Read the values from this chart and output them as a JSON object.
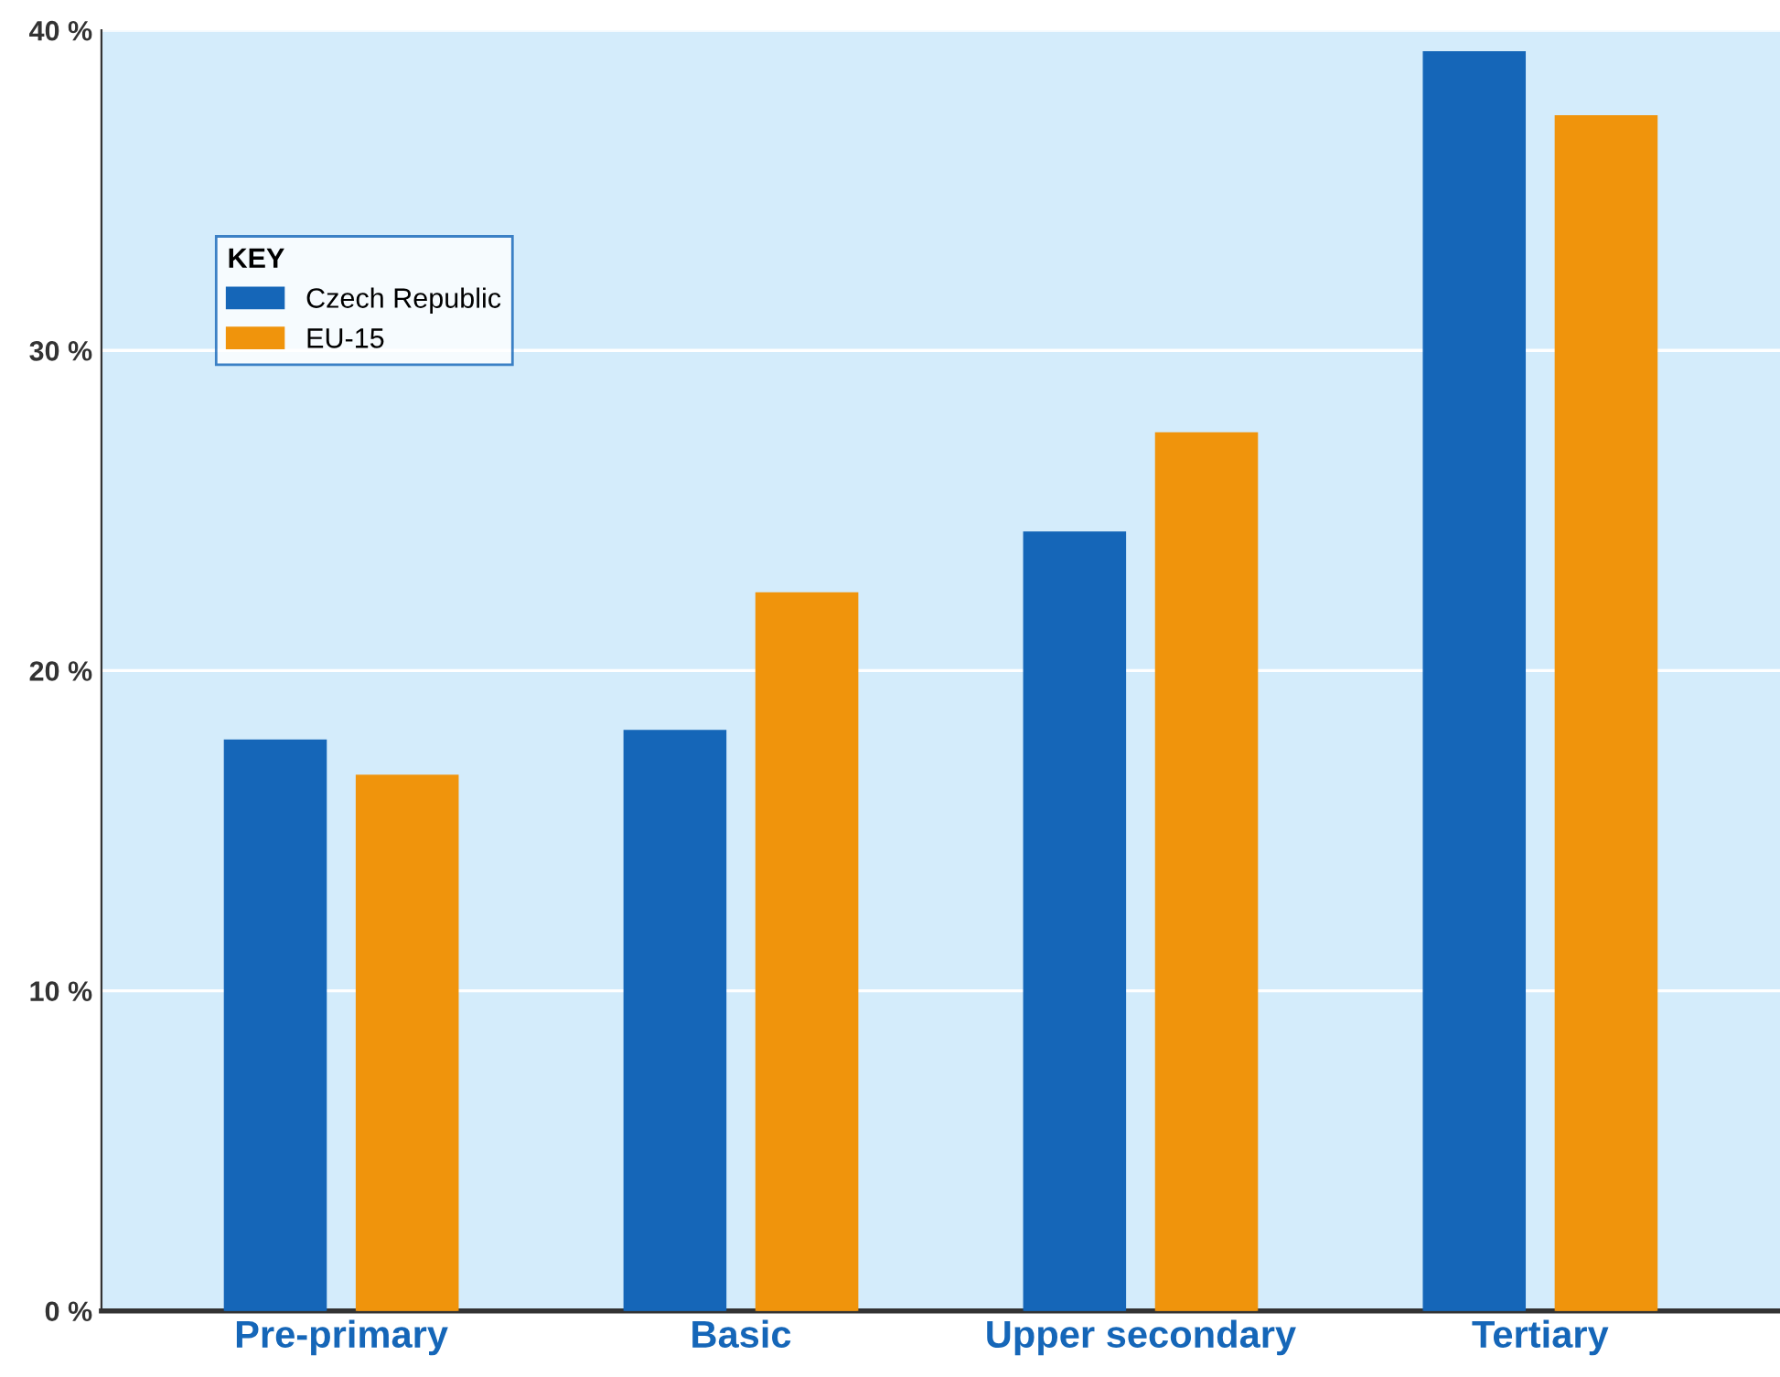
{
  "chart_data": {
    "type": "bar",
    "categories": [
      "Pre-primary",
      "Basic",
      "Upper secondary",
      "Tertiary"
    ],
    "series": [
      {
        "name": "Czech Republic",
        "color": "#1566b8",
        "values": [
          17.8,
          18.1,
          24.3,
          39.3
        ]
      },
      {
        "name": "EU-15",
        "color": "#f0940c",
        "values": [
          16.7,
          22.4,
          27.4,
          37.3
        ]
      }
    ],
    "legend_title": "KEY",
    "legend": "top left",
    "grid": "y",
    "ylim": [
      0,
      40
    ],
    "yticks": [
      {
        "value": 0,
        "label": "0 %"
      },
      {
        "value": 10,
        "label": "10 %"
      },
      {
        "value": 20,
        "label": "20 %"
      },
      {
        "value": 30,
        "label": "30 %"
      },
      {
        "value": 40,
        "label": "40 %"
      }
    ]
  }
}
